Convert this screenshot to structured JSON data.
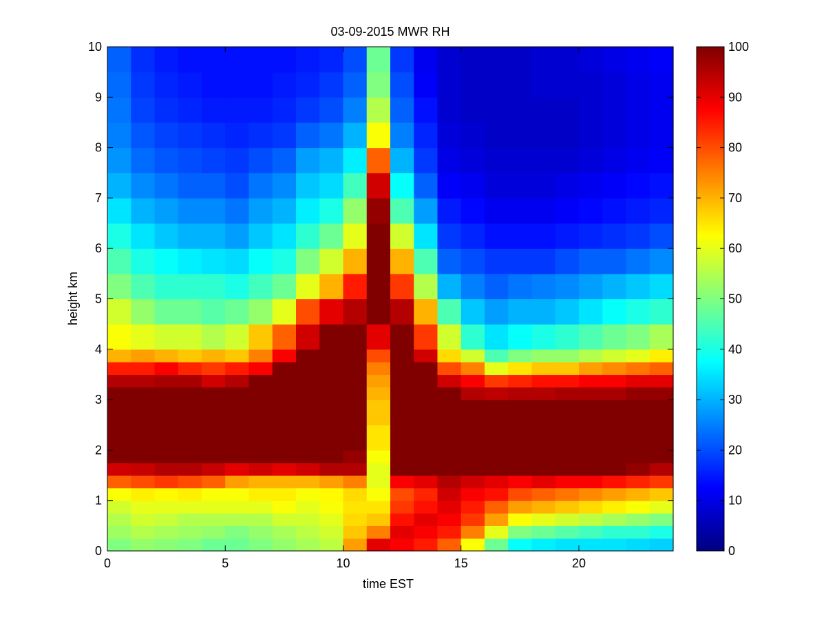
{
  "chart_data": {
    "type": "heatmap",
    "title": "03-09-2015 MWR RH",
    "xlabel": "time EST",
    "ylabel": "height km",
    "xlim": [
      0,
      24
    ],
    "ylim": [
      0,
      10
    ],
    "xticks": [
      0,
      5,
      10,
      15,
      20
    ],
    "yticks": [
      0,
      1,
      2,
      3,
      4,
      5,
      6,
      7,
      8,
      9,
      10
    ],
    "colorbar": {
      "min": 0,
      "max": 100,
      "ticks": [
        0,
        10,
        20,
        30,
        40,
        50,
        60,
        70,
        80,
        90,
        100
      ],
      "colormap": "jet"
    },
    "time_hours": [
      0,
      1,
      2,
      3,
      4,
      5,
      6,
      7,
      8,
      9,
      10,
      11,
      12,
      13,
      14,
      15,
      16,
      17,
      18,
      19,
      20,
      21,
      22,
      23
    ],
    "height_km": [
      0.0,
      0.25,
      0.5,
      0.75,
      1.0,
      1.25,
      1.5,
      1.75,
      2.0,
      2.5,
      3.0,
      3.25,
      3.5,
      3.75,
      4.0,
      4.5,
      5.0,
      5.5,
      6.0,
      6.5,
      7.0,
      7.5,
      8.0,
      8.5,
      9.0,
      9.5
    ],
    "rh_percent": [
      [
        50,
        53,
        55,
        58,
        62,
        78,
        92,
        100,
        100,
        100,
        100,
        95,
        85,
        70,
        62,
        58,
        50,
        45,
        40,
        35,
        30,
        27,
        25,
        24,
        23,
        22
      ],
      [
        52,
        55,
        58,
        60,
        64,
        80,
        93,
        100,
        100,
        100,
        100,
        95,
        85,
        72,
        60,
        52,
        45,
        40,
        35,
        30,
        26,
        23,
        21,
        19,
        18,
        17
      ],
      [
        51,
        54,
        57,
        60,
        63,
        82,
        95,
        100,
        100,
        100,
        100,
        96,
        88,
        70,
        58,
        48,
        42,
        38,
        32,
        28,
        24,
        21,
        19,
        17,
        16,
        15
      ],
      [
        50,
        53,
        55,
        60,
        64,
        80,
        95,
        100,
        100,
        100,
        100,
        96,
        84,
        68,
        58,
        48,
        42,
        36,
        30,
        26,
        22,
        20,
        18,
        16,
        15,
        14
      ],
      [
        48,
        52,
        55,
        60,
        62,
        78,
        93,
        100,
        100,
        100,
        100,
        92,
        82,
        70,
        55,
        46,
        42,
        35,
        30,
        26,
        22,
        19,
        17,
        15,
        14,
        14
      ],
      [
        48,
        50,
        55,
        60,
        62,
        72,
        90,
        100,
        100,
        100,
        100,
        95,
        85,
        68,
        58,
        48,
        40,
        34,
        28,
        24,
        20,
        18,
        16,
        15,
        14,
        14
      ],
      [
        50,
        52,
        55,
        60,
        64,
        70,
        92,
        100,
        100,
        100,
        100,
        100,
        88,
        75,
        68,
        52,
        44,
        38,
        32,
        28,
        24,
        20,
        17,
        15,
        14,
        14
      ],
      [
        52,
        54,
        58,
        62,
        64,
        70,
        90,
        100,
        100,
        100,
        100,
        100,
        100,
        88,
        78,
        60,
        48,
        40,
        35,
        30,
        26,
        22,
        18,
        16,
        15,
        14
      ],
      [
        54,
        56,
        58,
        60,
        62,
        70,
        92,
        100,
        100,
        100,
        100,
        100,
        100,
        100,
        92,
        80,
        60,
        50,
        42,
        36,
        32,
        28,
        22,
        18,
        16,
        15
      ],
      [
        56,
        58,
        60,
        62,
        63,
        72,
        95,
        100,
        100,
        100,
        100,
        100,
        100,
        100,
        100,
        90,
        70,
        58,
        48,
        40,
        34,
        30,
        24,
        20,
        18,
        16
      ],
      [
        72,
        68,
        66,
        65,
        66,
        75,
        95,
        98,
        100,
        100,
        100,
        100,
        100,
        100,
        100,
        95,
        85,
        70,
        60,
        52,
        44,
        36,
        30,
        25,
        22,
        20
      ],
      [
        90,
        75,
        68,
        65,
        62,
        60,
        60,
        62,
        65,
        68,
        70,
        72,
        75,
        80,
        90,
        100,
        100,
        100,
        100,
        98,
        92,
        78,
        62,
        55,
        50,
        48
      ],
      [
        88,
        90,
        86,
        82,
        80,
        88,
        100,
        100,
        100,
        100,
        100,
        100,
        100,
        100,
        100,
        95,
        82,
        70,
        58,
        45,
        38,
        30,
        25,
        22,
        20,
        18
      ],
      [
        85,
        88,
        90,
        86,
        84,
        90,
        100,
        100,
        100,
        100,
        100,
        100,
        100,
        92,
        82,
        70,
        55,
        45,
        35,
        28,
        22,
        18,
        16,
        14,
        12,
        11
      ],
      [
        78,
        85,
        88,
        90,
        92,
        95,
        100,
        100,
        100,
        100,
        100,
        92,
        80,
        66,
        58,
        45,
        30,
        22,
        18,
        15,
        12,
        10,
        9,
        8,
        8,
        8
      ],
      [
        62,
        75,
        82,
        85,
        88,
        92,
        100,
        100,
        100,
        100,
        95,
        88,
        75,
        58,
        42,
        32,
        25,
        20,
        16,
        13,
        11,
        9,
        8,
        7,
        7,
        7
      ],
      [
        48,
        60,
        72,
        78,
        86,
        90,
        100,
        100,
        100,
        100,
        94,
        82,
        60,
        45,
        35,
        28,
        22,
        18,
        14,
        11,
        9,
        8,
        7,
        7,
        7,
        7
      ],
      [
        38,
        50,
        62,
        72,
        80,
        88,
        100,
        100,
        100,
        100,
        95,
        84,
        65,
        50,
        38,
        30,
        24,
        18,
        14,
        11,
        9,
        8,
        7,
        7,
        7,
        7
      ],
      [
        36,
        48,
        60,
        70,
        78,
        90,
        100,
        100,
        100,
        100,
        95,
        86,
        68,
        52,
        40,
        30,
        25,
        18,
        14,
        11,
        9,
        8,
        7,
        7,
        8,
        8
      ],
      [
        35,
        46,
        58,
        68,
        76,
        88,
        100,
        100,
        100,
        100,
        96,
        86,
        68,
        52,
        42,
        32,
        26,
        20,
        15,
        12,
        10,
        8,
        7,
        7,
        8,
        8
      ],
      [
        35,
        44,
        56,
        66,
        74,
        88,
        100,
        100,
        100,
        100,
        96,
        88,
        72,
        55,
        45,
        35,
        28,
        22,
        16,
        13,
        11,
        9,
        8,
        8,
        8,
        9
      ],
      [
        35,
        42,
        54,
        64,
        72,
        86,
        100,
        100,
        100,
        100,
        96,
        88,
        74,
        58,
        48,
        38,
        30,
        22,
        17,
        14,
        12,
        10,
        9,
        9,
        9,
        10
      ],
      [
        34,
        42,
        52,
        62,
        70,
        84,
        98,
        100,
        100,
        100,
        98,
        90,
        76,
        60,
        50,
        40,
        32,
        24,
        18,
        15,
        13,
        11,
        10,
        10,
        10,
        11
      ],
      [
        33,
        40,
        50,
        60,
        68,
        82,
        95,
        100,
        100,
        100,
        98,
        90,
        78,
        64,
        54,
        42,
        34,
        26,
        20,
        16,
        14,
        12,
        11,
        11,
        11,
        12
      ]
    ]
  }
}
